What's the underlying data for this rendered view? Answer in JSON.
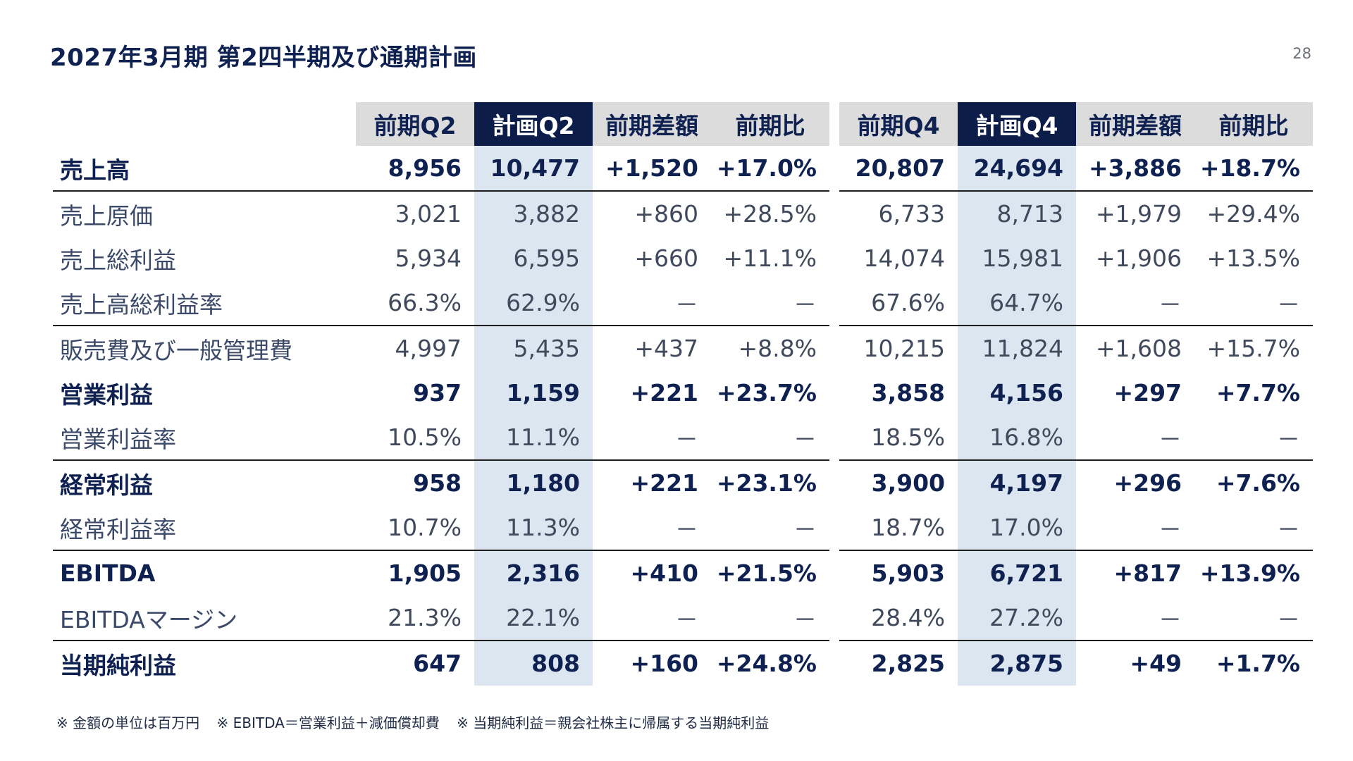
{
  "header": {
    "title": "2027年3月期 第2四半期及び通期計画",
    "page_number": "28"
  },
  "table": {
    "columns": [
      "前期Q2",
      "計画Q2",
      "前期差額",
      "前期比",
      "前期Q4",
      "計画Q4",
      "前期差額",
      "前期比"
    ],
    "highlight_columns": [
      "計画Q2",
      "計画Q4"
    ],
    "rows": [
      {
        "label": "売上高",
        "bold": true,
        "cells": [
          "8,956",
          "10,477",
          "+1,520",
          "+17.0%",
          "20,807",
          "24,694",
          "+3,886",
          "+18.7%"
        ]
      },
      {
        "label": "売上原価",
        "bold": false,
        "cells": [
          "3,021",
          "3,882",
          "+860",
          "+28.5%",
          "6,733",
          "8,713",
          "+1,979",
          "+29.4%"
        ]
      },
      {
        "label": "売上総利益",
        "bold": false,
        "cells": [
          "5,934",
          "6,595",
          "+660",
          "+11.1%",
          "14,074",
          "15,981",
          "+1,906",
          "+13.5%"
        ]
      },
      {
        "label": "売上高総利益率",
        "bold": false,
        "cells": [
          "66.3%",
          "62.9%",
          "－",
          "－",
          "67.6%",
          "64.7%",
          "－",
          "－"
        ]
      },
      {
        "label": "販売費及び一般管理費",
        "bold": false,
        "cells": [
          "4,997",
          "5,435",
          "+437",
          "+8.8%",
          "10,215",
          "11,824",
          "+1,608",
          "+15.7%"
        ]
      },
      {
        "label": "営業利益",
        "bold": true,
        "cells": [
          "937",
          "1,159",
          "+221",
          "+23.7%",
          "3,858",
          "4,156",
          "+297",
          "+7.7%"
        ]
      },
      {
        "label": "営業利益率",
        "bold": false,
        "cells": [
          "10.5%",
          "11.1%",
          "－",
          "－",
          "18.5%",
          "16.8%",
          "－",
          "－"
        ]
      },
      {
        "label": "経常利益",
        "bold": true,
        "cells": [
          "958",
          "1,180",
          "+221",
          "+23.1%",
          "3,900",
          "4,197",
          "+296",
          "+7.6%"
        ]
      },
      {
        "label": "経常利益率",
        "bold": false,
        "cells": [
          "10.7%",
          "11.3%",
          "－",
          "－",
          "18.7%",
          "17.0%",
          "－",
          "－"
        ]
      },
      {
        "label": "EBITDA",
        "bold": true,
        "cells": [
          "1,905",
          "2,316",
          "+410",
          "+21.5%",
          "5,903",
          "6,721",
          "+817",
          "+13.9%"
        ]
      },
      {
        "label": "EBITDAマージン",
        "bold": false,
        "cells": [
          "21.3%",
          "22.1%",
          "－",
          "－",
          "28.4%",
          "27.2%",
          "－",
          "－"
        ]
      },
      {
        "label": "当期純利益",
        "bold": true,
        "cells": [
          "647",
          "808",
          "+160",
          "+24.8%",
          "2,825",
          "2,875",
          "+49",
          "+1.7%"
        ]
      }
    ]
  },
  "footnotes": [
    "※ 金額の単位は百万円",
    "※ EBITDA＝営業利益＋減価償却費",
    "※ 当期純利益＝親会社株主に帰属する当期純利益"
  ],
  "colors": {
    "navy": "#0c1d4a",
    "header_gray": "#dcdcdc",
    "highlight_blue": "#dce6f1"
  }
}
